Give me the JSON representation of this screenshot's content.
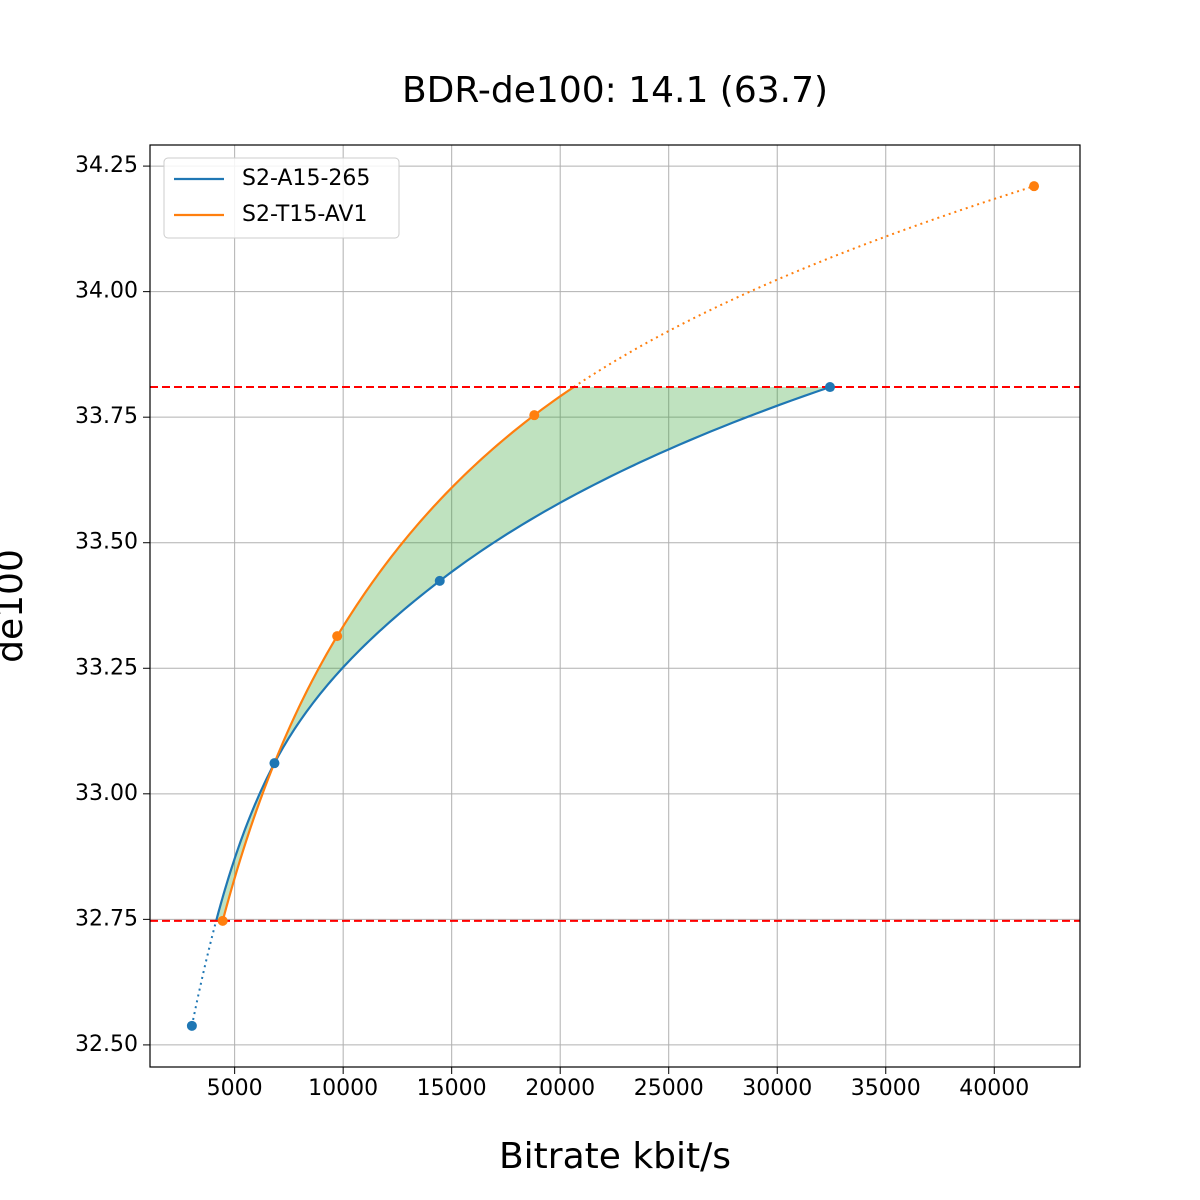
{
  "chart_data": {
    "type": "line",
    "title": "BDR-de100: 14.1 (63.7)",
    "x_label": "Bitrate kbit/s",
    "y_label": "de100",
    "series": [
      {
        "name": "S2-A15-265",
        "color": "#1f77b4",
        "x": [
          3030,
          6834,
          14450,
          32430
        ],
        "values": [
          32.538,
          33.061,
          33.424,
          33.81
        ]
      },
      {
        "name": "S2-T15-AV1",
        "color": "#ff7f0e",
        "x": [
          4449,
          9724,
          18806,
          41833
        ],
        "values": [
          32.747,
          33.314,
          33.754,
          34.21
        ]
      }
    ],
    "xlim": [
      1100,
      43950
    ],
    "ylim": [
      32.456,
      34.292
    ],
    "xticks": [
      5000,
      10000,
      15000,
      20000,
      25000,
      30000,
      35000,
      40000
    ],
    "yticks": [
      {
        "value": 32.5,
        "label": "32.50"
      },
      32.75,
      {
        "value": 33,
        "label": "33.00"
      },
      33.25,
      {
        "value": 33.5,
        "label": "33.50"
      },
      33.75,
      {
        "value": 34,
        "label": "34.00"
      },
      34.25
    ],
    "grid": true,
    "legend": "upper left",
    "fill_color": "#2ca02c",
    "limit_line_color": "#ff0000"
  }
}
